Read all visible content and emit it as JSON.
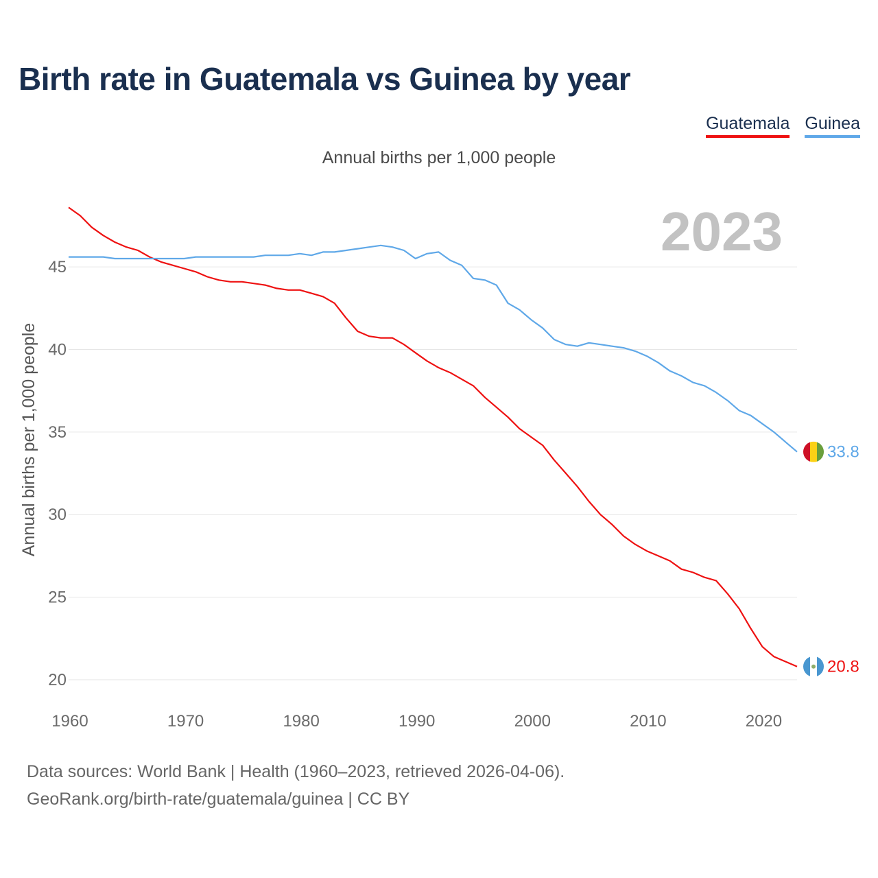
{
  "header": {
    "title": "Birth rate in Guatemala vs Guinea by year",
    "subtitle": "Annual births per 1,000 people",
    "current_year": "2023"
  },
  "legend": [
    {
      "label": "Guatemala",
      "color": "#ee1111"
    },
    {
      "label": "Guinea",
      "color": "#5fa8e8"
    }
  ],
  "footer": {
    "line1": "Data sources: World Bank | Health (1960–2023, retrieved 2026-04-06).",
    "line2": "GeoRank.org/birth-rate/guatemala/guinea | CC BY"
  },
  "chart_data": {
    "type": "line",
    "title": "Birth rate in Guatemala vs Guinea by year",
    "ylabel": "Annual births per 1,000 people",
    "xlabel": "",
    "xlim": [
      1960,
      2023
    ],
    "ylim": [
      20,
      48.7
    ],
    "x_ticks": [
      1960,
      1970,
      1980,
      1990,
      2000,
      2010,
      2020
    ],
    "y_ticks": [
      20,
      25,
      30,
      35,
      40,
      45
    ],
    "grid": true,
    "x": [
      1960,
      1961,
      1962,
      1963,
      1964,
      1965,
      1966,
      1967,
      1968,
      1969,
      1970,
      1971,
      1972,
      1973,
      1974,
      1975,
      1976,
      1977,
      1978,
      1979,
      1980,
      1981,
      1982,
      1983,
      1984,
      1985,
      1986,
      1987,
      1988,
      1989,
      1990,
      1991,
      1992,
      1993,
      1994,
      1995,
      1996,
      1997,
      1998,
      1999,
      2000,
      2001,
      2002,
      2003,
      2004,
      2005,
      2006,
      2007,
      2008,
      2009,
      2010,
      2011,
      2012,
      2013,
      2014,
      2015,
      2016,
      2017,
      2018,
      2019,
      2020,
      2021,
      2022,
      2023
    ],
    "series": [
      {
        "name": "Guatemala",
        "color": "#ee1111",
        "end_label": "20.8",
        "values": [
          48.6,
          48.1,
          47.4,
          46.9,
          46.5,
          46.2,
          46.0,
          45.6,
          45.3,
          45.1,
          44.9,
          44.7,
          44.4,
          44.2,
          44.1,
          44.1,
          44.0,
          43.9,
          43.7,
          43.6,
          43.6,
          43.4,
          43.2,
          42.8,
          41.9,
          41.1,
          40.8,
          40.7,
          40.7,
          40.3,
          39.8,
          39.3,
          38.9,
          38.6,
          38.2,
          37.8,
          37.1,
          36.5,
          35.9,
          35.2,
          34.7,
          34.2,
          33.3,
          32.5,
          31.7,
          30.8,
          30.0,
          29.4,
          28.7,
          28.2,
          27.8,
          27.5,
          27.2,
          26.7,
          26.5,
          26.2,
          26.0,
          25.2,
          24.3,
          23.1,
          22.0,
          21.4,
          21.1,
          20.8
        ]
      },
      {
        "name": "Guinea",
        "color": "#5fa8e8",
        "end_label": "33.8",
        "values": [
          45.6,
          45.6,
          45.6,
          45.6,
          45.5,
          45.5,
          45.5,
          45.5,
          45.5,
          45.5,
          45.5,
          45.6,
          45.6,
          45.6,
          45.6,
          45.6,
          45.6,
          45.7,
          45.7,
          45.7,
          45.8,
          45.7,
          45.9,
          45.9,
          46.0,
          46.1,
          46.2,
          46.3,
          46.2,
          46.0,
          45.5,
          45.8,
          45.9,
          45.4,
          45.1,
          44.3,
          44.2,
          43.9,
          42.8,
          42.4,
          41.8,
          41.3,
          40.6,
          40.3,
          40.2,
          40.4,
          40.3,
          40.2,
          40.1,
          39.9,
          39.6,
          39.2,
          38.7,
          38.4,
          38.0,
          37.8,
          37.4,
          36.9,
          36.3,
          36.0,
          35.5,
          35.0,
          34.4,
          33.8
        ]
      }
    ]
  }
}
